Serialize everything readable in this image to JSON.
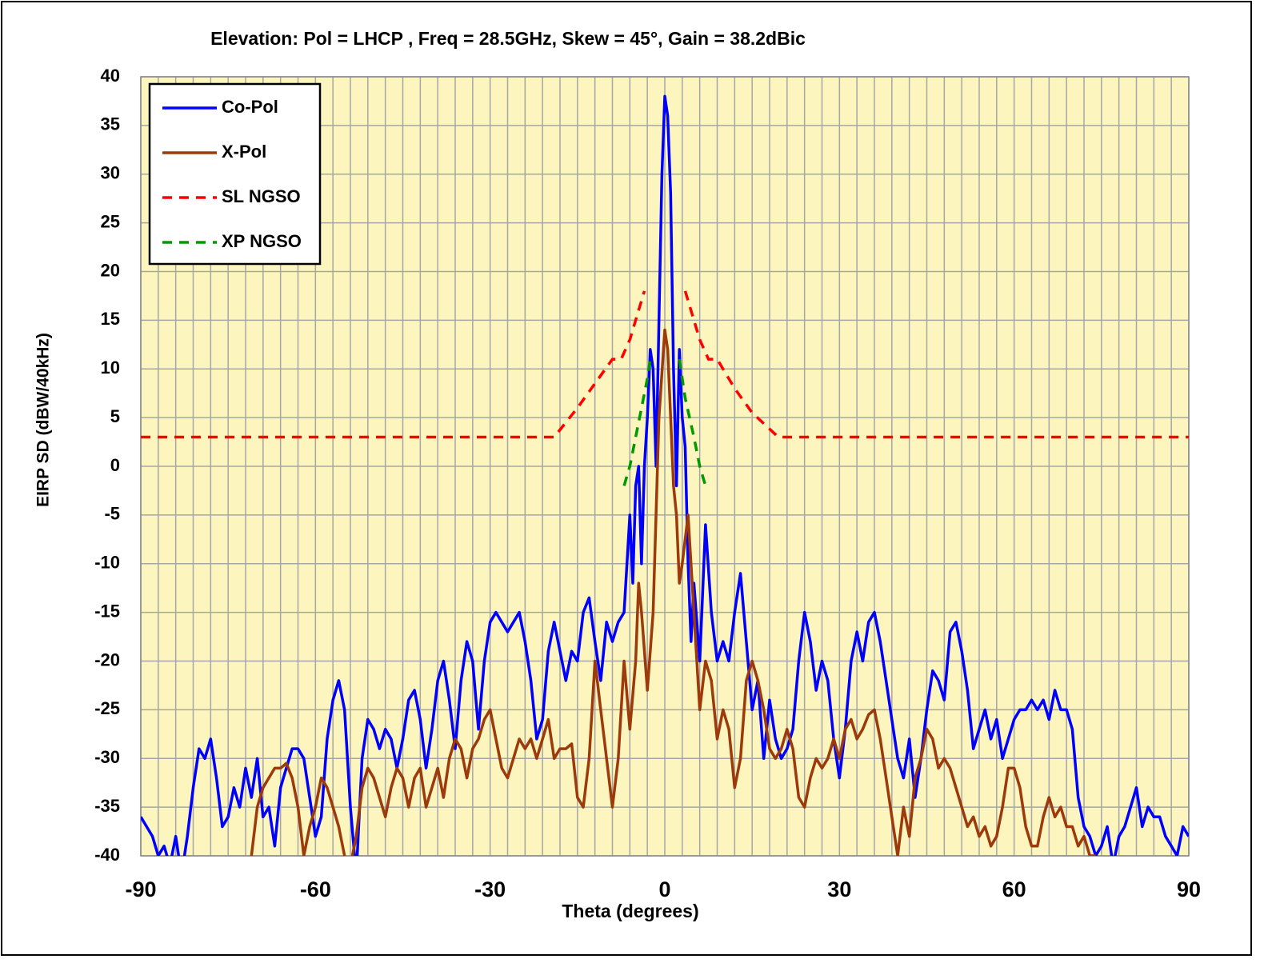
{
  "chart_data": {
    "type": "line",
    "title": "Elevation: Pol =  LHCP , Freq = 28.5GHz, Skew = 45°, Gain = 38.2dBic",
    "xlabel": "Theta (degrees)",
    "ylabel": "EIRP SD (dBW/40kHz)",
    "xlim": [
      -90,
      90
    ],
    "ylim": [
      -40,
      40
    ],
    "xticks": [
      -90,
      -60,
      -30,
      0,
      30,
      60,
      90
    ],
    "yticks": [
      -40,
      -35,
      -30,
      -25,
      -20,
      -15,
      -10,
      -5,
      0,
      5,
      10,
      15,
      20,
      25,
      30,
      35,
      40
    ],
    "x_minor_grid": [
      -90,
      -87,
      -84,
      -81,
      -78,
      -75,
      -72,
      -69,
      -66,
      -63,
      -60,
      -57,
      -54,
      -51,
      -48,
      -45,
      -42,
      -39,
      -36,
      -33,
      -30,
      -27,
      -24,
      -21,
      -18,
      -15,
      -12,
      -9,
      -6,
      -3,
      0,
      3,
      6,
      9,
      12,
      15,
      18,
      21,
      24,
      27,
      30,
      33,
      36,
      39,
      42,
      45,
      48,
      51,
      54,
      57,
      60,
      63,
      66,
      69,
      72,
      75,
      78,
      81,
      84,
      87,
      90
    ],
    "grid": true,
    "legend": "upper left",
    "background": "#fcf5bd",
    "series": [
      {
        "name": "Co-Pol",
        "color": "#0000ff",
        "dash": false,
        "x": [
          -90,
          -89,
          -88,
          -87,
          -86,
          -85,
          -84,
          -83,
          -82,
          -81,
          -80,
          -79,
          -78,
          -77,
          -76,
          -75,
          -74,
          -73,
          -72,
          -71,
          -70,
          -69,
          -68,
          -67,
          -66,
          -65,
          -64,
          -63,
          -62,
          -61,
          -60,
          -59,
          -58,
          -57,
          -56,
          -55,
          -54,
          -53,
          -52,
          -51,
          -50,
          -49,
          -48,
          -47,
          -46,
          -45,
          -44,
          -43,
          -42,
          -41,
          -40,
          -39,
          -38,
          -37,
          -36,
          -35,
          -34,
          -33,
          -32,
          -31,
          -30,
          -29,
          -28,
          -27,
          -26,
          -25,
          -24,
          -23,
          -22,
          -21,
          -20,
          -19,
          -18,
          -17,
          -16,
          -15,
          -14,
          -13,
          -12,
          -11,
          -10,
          -9,
          -8,
          -7,
          -6,
          -5.5,
          -5,
          -4.5,
          -4,
          -3.5,
          -3,
          -2.5,
          -2,
          -1.5,
          -1,
          -0.5,
          0,
          0.5,
          1,
          1.5,
          2,
          2.5,
          3,
          3.5,
          4,
          4.5,
          5,
          6,
          7,
          8,
          9,
          10,
          11,
          12,
          13,
          14,
          15,
          16,
          17,
          18,
          19,
          20,
          21,
          22,
          23,
          24,
          25,
          26,
          27,
          28,
          29,
          30,
          31,
          32,
          33,
          34,
          35,
          36,
          37,
          38,
          39,
          40,
          41,
          42,
          43,
          44,
          45,
          46,
          47,
          48,
          49,
          50,
          51,
          52,
          53,
          54,
          55,
          56,
          57,
          58,
          59,
          60,
          61,
          62,
          63,
          64,
          65,
          66,
          67,
          68,
          69,
          70,
          71,
          72,
          73,
          74,
          75,
          76,
          77,
          78,
          79,
          80,
          81,
          82,
          83,
          84,
          85,
          86,
          87,
          88,
          89,
          90
        ],
        "values": [
          -36,
          -37,
          -38,
          -40,
          -39,
          -41,
          -38,
          -42,
          -38,
          -33,
          -29,
          -30,
          -28,
          -32,
          -37,
          -36,
          -33,
          -35,
          -31,
          -34,
          -30,
          -36,
          -35,
          -39,
          -33,
          -31,
          -29,
          -29,
          -30,
          -34,
          -38,
          -36,
          -28,
          -24,
          -22,
          -25,
          -35,
          -42,
          -30,
          -26,
          -27,
          -29,
          -27,
          -28,
          -31,
          -28,
          -24,
          -23,
          -26,
          -31,
          -27,
          -22,
          -20,
          -24,
          -29,
          -22,
          -18,
          -20,
          -27,
          -20,
          -16,
          -15,
          -16,
          -17,
          -16,
          -15,
          -18,
          -22,
          -28,
          -26,
          -19,
          -16,
          -19,
          -22,
          -19,
          -20,
          -15,
          -13.5,
          -18,
          -22,
          -16,
          -18,
          -16,
          -15,
          -5,
          -12,
          -2,
          0,
          -10,
          0,
          5,
          12,
          10,
          0,
          15,
          30,
          38,
          36,
          28,
          10,
          -2,
          12,
          5,
          2,
          -10,
          -18,
          -12,
          -20,
          -6,
          -15,
          -20,
          -18,
          -20,
          -15,
          -11,
          -18,
          -25,
          -22,
          -30,
          -24,
          -28,
          -30,
          -29,
          -27,
          -20,
          -15,
          -18,
          -23,
          -20,
          -22,
          -28,
          -32,
          -27,
          -20,
          -17,
          -20,
          -16,
          -15,
          -18,
          -22,
          -26,
          -30,
          -32,
          -28,
          -34,
          -30,
          -25,
          -21,
          -22,
          -24,
          -17,
          -16,
          -19,
          -23,
          -29,
          -27,
          -25,
          -28,
          -26,
          -30,
          -28,
          -26,
          -25,
          -25,
          -24,
          -25,
          -24,
          -26,
          -23,
          -25,
          -25,
          -27,
          -34,
          -37,
          -38,
          -40,
          -39,
          -37,
          -41,
          -38,
          -37,
          -35,
          -33,
          -37,
          -35,
          -36,
          -36,
          -38,
          -39,
          -40,
          -37,
          -38
        ]
      },
      {
        "name": "X-Pol",
        "color": "#9c3a0c",
        "dash": false,
        "x": [
          -71,
          -70,
          -69,
          -68,
          -67,
          -66,
          -65,
          -64,
          -63,
          -62,
          -61,
          -60,
          -59,
          -58,
          -57,
          -56,
          -55,
          -54,
          -53,
          -52,
          -51,
          -50,
          -49,
          -48,
          -47,
          -46,
          -45,
          -44,
          -43,
          -42,
          -41,
          -40,
          -39,
          -38,
          -37,
          -36,
          -35,
          -34,
          -33,
          -32,
          -31,
          -30,
          -29,
          -28,
          -27,
          -26,
          -25,
          -24,
          -23,
          -22,
          -21,
          -20,
          -19,
          -18,
          -17,
          -16,
          -15,
          -14,
          -13,
          -12,
          -11,
          -10,
          -9,
          -8,
          -7,
          -6,
          -5,
          -4.5,
          -4,
          -3,
          -2,
          -1,
          0,
          0.5,
          1,
          1.5,
          2,
          2.5,
          3,
          4,
          5,
          6,
          7,
          8,
          9,
          10,
          11,
          12,
          13,
          14,
          15,
          16,
          17,
          18,
          19,
          20,
          21,
          22,
          23,
          24,
          25,
          26,
          27,
          28,
          29,
          30,
          31,
          32,
          33,
          34,
          35,
          36,
          37,
          38,
          39,
          40,
          41,
          42,
          43,
          44,
          45,
          46,
          47,
          48,
          49,
          50,
          51,
          52,
          53,
          54,
          55,
          56,
          57,
          58,
          59,
          60,
          61,
          62,
          63,
          64,
          65,
          66,
          67,
          68,
          69,
          70,
          71,
          72,
          73,
          74
        ],
        "values": [
          -40,
          -35,
          -33,
          -32,
          -31,
          -31,
          -30.5,
          -32,
          -35,
          -40,
          -37,
          -35,
          -32,
          -33,
          -35,
          -37,
          -40,
          -41,
          -38,
          -33,
          -31,
          -32,
          -34,
          -36,
          -33,
          -31,
          -32,
          -35,
          -32,
          -31,
          -35,
          -33,
          -31,
          -34,
          -30,
          -28,
          -29,
          -32,
          -29,
          -28,
          -26,
          -25,
          -28,
          -31,
          -32,
          -30,
          -28,
          -29,
          -28,
          -30,
          -28,
          -26,
          -30,
          -29,
          -29,
          -28.5,
          -34,
          -35,
          -30,
          -20,
          -25,
          -30,
          -35,
          -30,
          -20,
          -27,
          -20,
          -12,
          -15,
          -23,
          -15,
          5,
          14,
          12,
          5,
          -2,
          -5,
          -12,
          -10,
          -5,
          -15,
          -25,
          -20,
          -22,
          -28,
          -25,
          -27,
          -33,
          -30,
          -22,
          -20,
          -22,
          -25,
          -29,
          -30,
          -29,
          -27,
          -29,
          -34,
          -35,
          -32,
          -30,
          -31,
          -30,
          -28,
          -30,
          -27,
          -26,
          -28,
          -27,
          -25.5,
          -25,
          -28,
          -32,
          -36,
          -40,
          -35,
          -38,
          -32,
          -30,
          -27,
          -28,
          -31,
          -30,
          -31,
          -33,
          -35,
          -37,
          -36,
          -38,
          -37,
          -39,
          -38,
          -35,
          -31,
          -31,
          -33,
          -37,
          -39,
          -39,
          -36,
          -34,
          -36,
          -35,
          -37,
          -37,
          -39,
          -38,
          -40,
          -40
        ]
      },
      {
        "name": "SL NGSO",
        "color": "#ff0000",
        "dash": true,
        "x": [
          -90,
          -19,
          -15,
          -12,
          -9,
          -7.5,
          -6,
          -3.5,
          null,
          3.5,
          6,
          7.5,
          9,
          12,
          15,
          19.5,
          90
        ],
        "values": [
          3,
          3,
          6,
          8.5,
          11,
          11,
          13,
          18,
          null,
          18,
          13,
          11,
          11,
          8,
          5.5,
          3,
          3
        ]
      },
      {
        "name": "XP NGSO",
        "color": "#009900",
        "dash": true,
        "x": [
          -7,
          -6,
          -5,
          -4,
          -3,
          -2.5,
          null,
          2.5,
          3.5,
          5,
          6,
          7
        ],
        "values": [
          -2,
          0,
          3,
          6,
          9,
          11,
          null,
          11,
          7,
          3,
          0,
          -2
        ]
      }
    ]
  }
}
